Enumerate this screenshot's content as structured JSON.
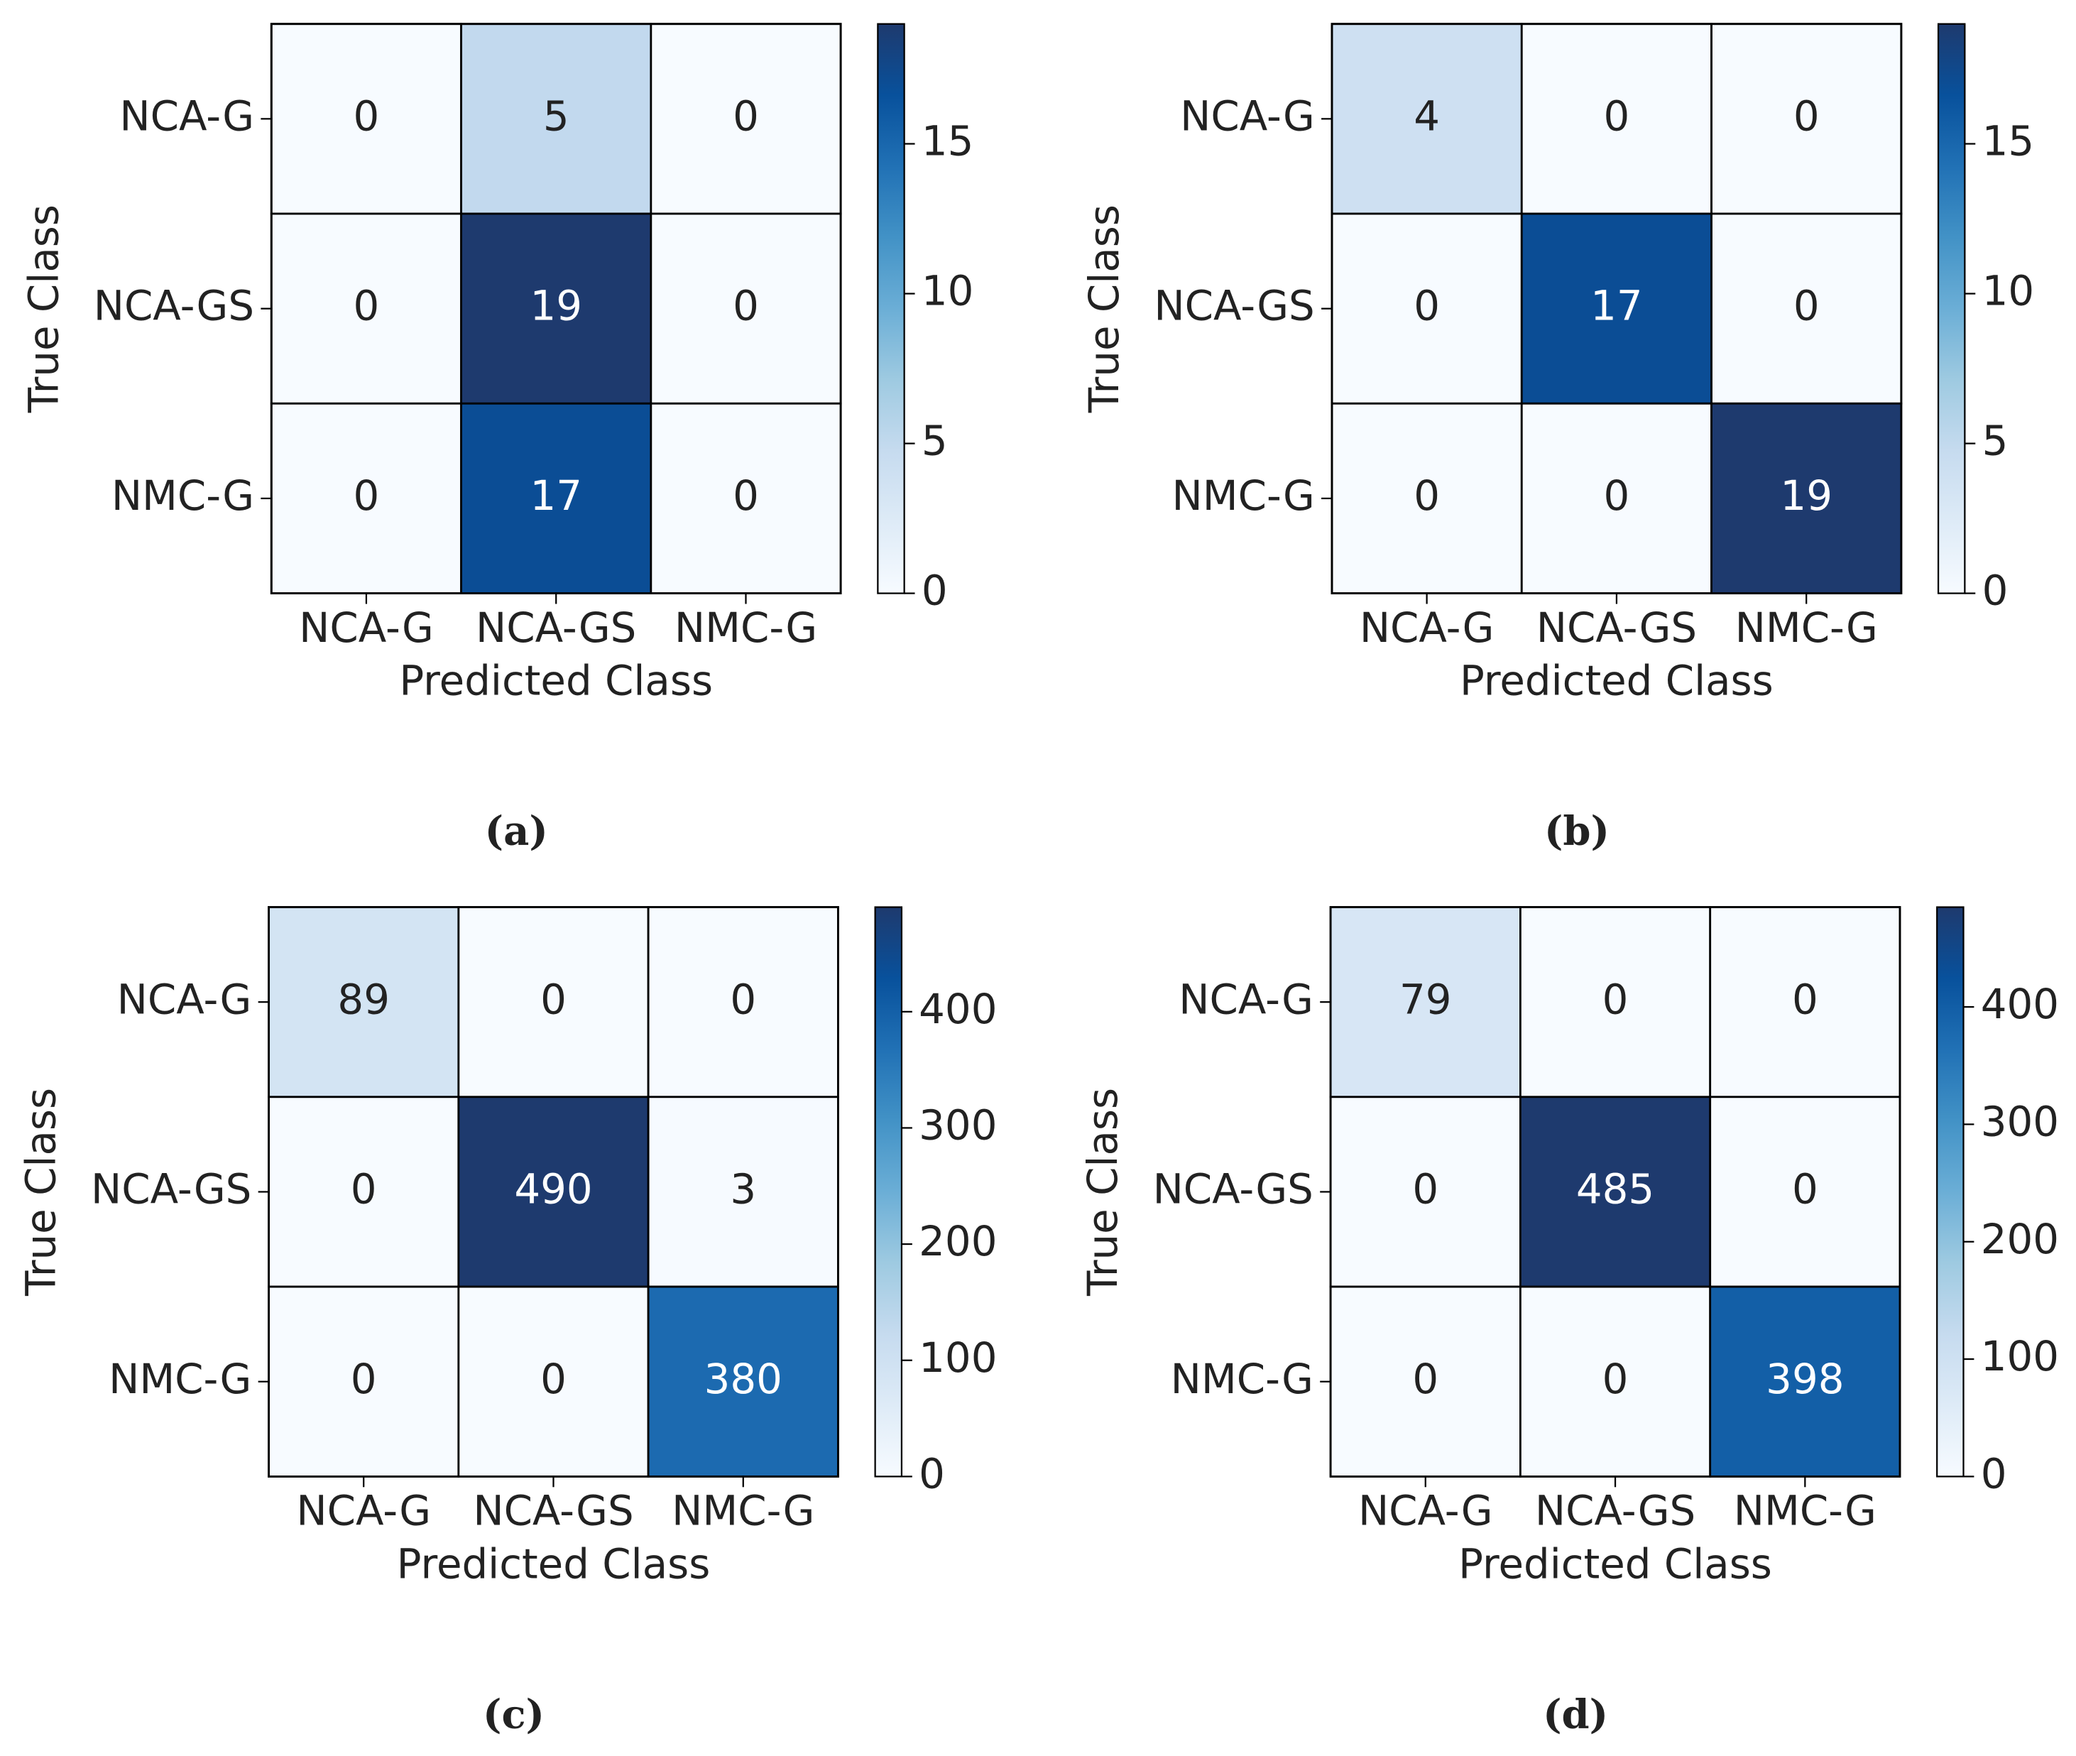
{
  "chart_data": [
    {
      "type": "heatmap",
      "caption": "(a)",
      "xlabel": "Predicted Class",
      "ylabel": "True Class",
      "x_categories": [
        "NCA-G",
        "NCA-GS",
        "NMC-G"
      ],
      "y_categories": [
        "NCA-G",
        "NCA-GS",
        "NMC-G"
      ],
      "values": [
        [
          0,
          5,
          0
        ],
        [
          0,
          19,
          0
        ],
        [
          0,
          17,
          0
        ]
      ],
      "colormap": "Blues",
      "zlim": [
        0,
        19
      ],
      "zticks": [
        0,
        5,
        10,
        15
      ]
    },
    {
      "type": "heatmap",
      "caption": "(b)",
      "xlabel": "Predicted Class",
      "ylabel": "True Class",
      "x_categories": [
        "NCA-G",
        "NCA-GS",
        "NMC-G"
      ],
      "y_categories": [
        "NCA-G",
        "NCA-GS",
        "NMC-G"
      ],
      "values": [
        [
          4,
          0,
          0
        ],
        [
          0,
          17,
          0
        ],
        [
          0,
          0,
          19
        ]
      ],
      "colormap": "Blues",
      "zlim": [
        0,
        19
      ],
      "zticks": [
        0,
        5,
        10,
        15
      ]
    },
    {
      "type": "heatmap",
      "caption": "(c)",
      "xlabel": "Predicted Class",
      "ylabel": "True Class",
      "x_categories": [
        "NCA-G",
        "NCA-GS",
        "NMC-G"
      ],
      "y_categories": [
        "NCA-G",
        "NCA-GS",
        "NMC-G"
      ],
      "values": [
        [
          89,
          0,
          0
        ],
        [
          0,
          490,
          3
        ],
        [
          0,
          0,
          380
        ]
      ],
      "colormap": "Blues",
      "zlim": [
        0,
        490
      ],
      "zticks": [
        0,
        100,
        200,
        300,
        400
      ]
    },
    {
      "type": "heatmap",
      "caption": "(d)",
      "xlabel": "Predicted Class",
      "ylabel": "True Class",
      "x_categories": [
        "NCA-G",
        "NCA-GS",
        "NMC-G"
      ],
      "y_categories": [
        "NCA-G",
        "NCA-GS",
        "NMC-G"
      ],
      "values": [
        [
          79,
          0,
          0
        ],
        [
          0,
          485,
          0
        ],
        [
          0,
          0,
          398
        ]
      ],
      "colormap": "Blues",
      "zlim": [
        0,
        485
      ],
      "zticks": [
        0,
        100,
        200,
        300,
        400
      ]
    }
  ]
}
